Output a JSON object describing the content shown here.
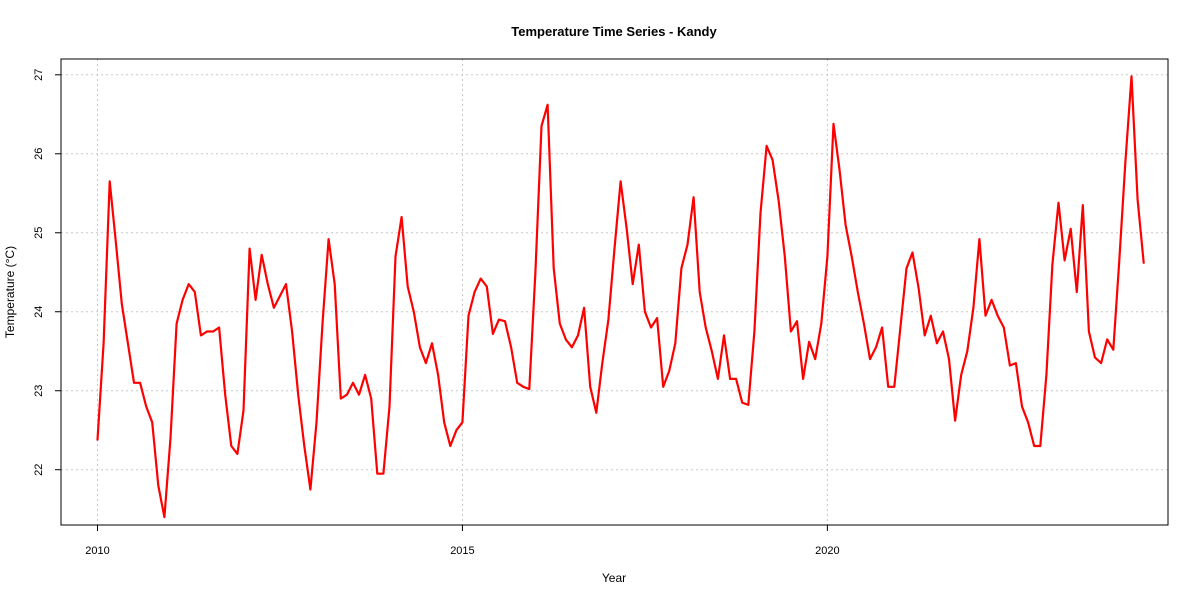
{
  "chart_data": {
    "type": "line",
    "title": "Temperature Time Series - Kandy",
    "xlabel": "Year",
    "ylabel": "Temperature (°C)",
    "xlim": [
      "2009-07-01",
      "2024-09-01"
    ],
    "ylim": [
      21.3,
      27.2
    ],
    "x_ticks": [
      {
        "value": "2010-01-01",
        "label": "2010"
      },
      {
        "value": "2015-01-01",
        "label": "2015"
      },
      {
        "value": "2020-01-01",
        "label": "2020"
      }
    ],
    "y_ticks": [
      {
        "value": 22,
        "label": "22"
      },
      {
        "value": 23,
        "label": "23"
      },
      {
        "value": 24,
        "label": "24"
      },
      {
        "value": 25,
        "label": "25"
      },
      {
        "value": 26,
        "label": "26"
      },
      {
        "value": 27,
        "label": "27"
      }
    ],
    "grid": true,
    "series": [
      {
        "color": "#ff0000",
        "x": [
          "2010-01",
          "2010-02",
          "2010-03",
          "2010-04",
          "2010-05",
          "2010-06",
          "2010-07",
          "2010-08",
          "2010-09",
          "2010-10",
          "2010-11",
          "2010-12",
          "2011-01",
          "2011-02",
          "2011-03",
          "2011-04",
          "2011-05",
          "2011-06",
          "2011-07",
          "2011-08",
          "2011-09",
          "2011-10",
          "2011-11",
          "2011-12",
          "2012-01",
          "2012-02",
          "2012-03",
          "2012-04",
          "2012-05",
          "2012-06",
          "2012-07",
          "2012-08",
          "2012-09",
          "2012-10",
          "2012-11",
          "2012-12",
          "2013-01",
          "2013-02",
          "2013-03",
          "2013-04",
          "2013-05",
          "2013-06",
          "2013-07",
          "2013-08",
          "2013-09",
          "2013-10",
          "2013-11",
          "2013-12",
          "2014-01",
          "2014-02",
          "2014-03",
          "2014-04",
          "2014-05",
          "2014-06",
          "2014-07",
          "2014-08",
          "2014-09",
          "2014-10",
          "2014-11",
          "2014-12",
          "2015-01",
          "2015-02",
          "2015-03",
          "2015-04",
          "2015-05",
          "2015-06",
          "2015-07",
          "2015-08",
          "2015-09",
          "2015-10",
          "2015-11",
          "2015-12",
          "2016-01",
          "2016-02",
          "2016-03",
          "2016-04",
          "2016-05",
          "2016-06",
          "2016-07",
          "2016-08",
          "2016-09",
          "2016-10",
          "2016-11",
          "2016-12",
          "2017-01",
          "2017-02",
          "2017-03",
          "2017-04",
          "2017-05",
          "2017-06",
          "2017-07",
          "2017-08",
          "2017-09",
          "2017-10",
          "2017-11",
          "2017-12",
          "2018-01",
          "2018-02",
          "2018-03",
          "2018-04",
          "2018-05",
          "2018-06",
          "2018-07",
          "2018-08",
          "2018-09",
          "2018-10",
          "2018-11",
          "2018-12",
          "2019-01",
          "2019-02",
          "2019-03",
          "2019-04",
          "2019-05",
          "2019-06",
          "2019-07",
          "2019-08",
          "2019-09",
          "2019-10",
          "2019-11",
          "2019-12",
          "2020-01",
          "2020-02",
          "2020-03",
          "2020-04",
          "2020-05",
          "2020-06",
          "2020-07",
          "2020-08",
          "2020-09",
          "2020-10",
          "2020-11",
          "2020-12",
          "2021-01",
          "2021-02",
          "2021-03",
          "2021-04",
          "2021-05",
          "2021-06",
          "2021-07",
          "2021-08",
          "2021-09",
          "2021-10",
          "2021-11",
          "2021-12",
          "2022-01",
          "2022-02",
          "2022-03",
          "2022-04",
          "2022-05",
          "2022-06",
          "2022-07",
          "2022-08",
          "2022-09",
          "2022-10",
          "2022-11",
          "2022-12",
          "2023-01",
          "2023-02",
          "2023-03",
          "2023-04",
          "2023-05",
          "2023-06",
          "2023-07",
          "2023-08",
          "2023-09",
          "2023-10",
          "2023-11",
          "2023-12",
          "2024-01",
          "2024-02",
          "2024-03",
          "2024-04",
          "2024-05"
        ],
        "values": [
          22.38,
          23.6,
          25.65,
          24.9,
          24.1,
          23.6,
          23.1,
          23.1,
          22.8,
          22.6,
          21.8,
          21.4,
          22.4,
          23.85,
          24.15,
          24.35,
          24.25,
          23.7,
          23.75,
          23.75,
          23.8,
          22.95,
          22.3,
          22.2,
          22.75,
          24.8,
          24.15,
          24.72,
          24.35,
          24.05,
          24.2,
          24.35,
          23.75,
          22.95,
          22.3,
          21.75,
          22.6,
          23.85,
          24.92,
          24.35,
          22.9,
          22.95,
          23.1,
          22.95,
          23.2,
          22.9,
          21.95,
          21.95,
          22.8,
          24.7,
          25.2,
          24.32,
          24.0,
          23.55,
          23.35,
          23.6,
          23.2,
          22.6,
          22.3,
          22.5,
          22.6,
          23.95,
          24.25,
          24.42,
          24.32,
          23.72,
          23.9,
          23.88,
          23.55,
          23.1,
          23.05,
          23.02,
          24.5,
          26.35,
          26.62,
          24.55,
          23.85,
          23.65,
          23.55,
          23.7,
          24.05,
          23.05,
          22.72,
          23.35,
          23.9,
          24.8,
          25.65,
          25.05,
          24.35,
          24.85,
          24.0,
          23.8,
          23.92,
          23.05,
          23.25,
          23.6,
          24.55,
          24.85,
          25.45,
          24.25,
          23.8,
          23.5,
          23.15,
          23.7,
          23.15,
          23.15,
          22.85,
          22.82,
          23.75,
          25.25,
          26.1,
          25.92,
          25.4,
          24.7,
          23.75,
          23.88,
          23.15,
          23.62,
          23.4,
          23.85,
          24.7,
          26.38,
          25.8,
          25.1,
          24.7,
          24.25,
          23.85,
          23.4,
          23.55,
          23.8,
          23.05,
          23.05,
          23.8,
          24.55,
          24.75,
          24.3,
          23.7,
          23.95,
          23.6,
          23.75,
          23.4,
          22.62,
          23.2,
          23.5,
          24.05,
          24.92,
          23.95,
          24.15,
          23.95,
          23.8,
          23.32,
          23.35,
          22.8,
          22.6,
          22.3,
          22.3,
          23.2,
          24.6,
          25.38,
          24.65,
          25.05,
          24.25,
          25.35,
          23.75,
          23.42,
          23.35,
          23.65,
          23.52,
          24.65,
          25.9,
          26.98,
          25.42,
          24.62
        ]
      }
    ]
  }
}
